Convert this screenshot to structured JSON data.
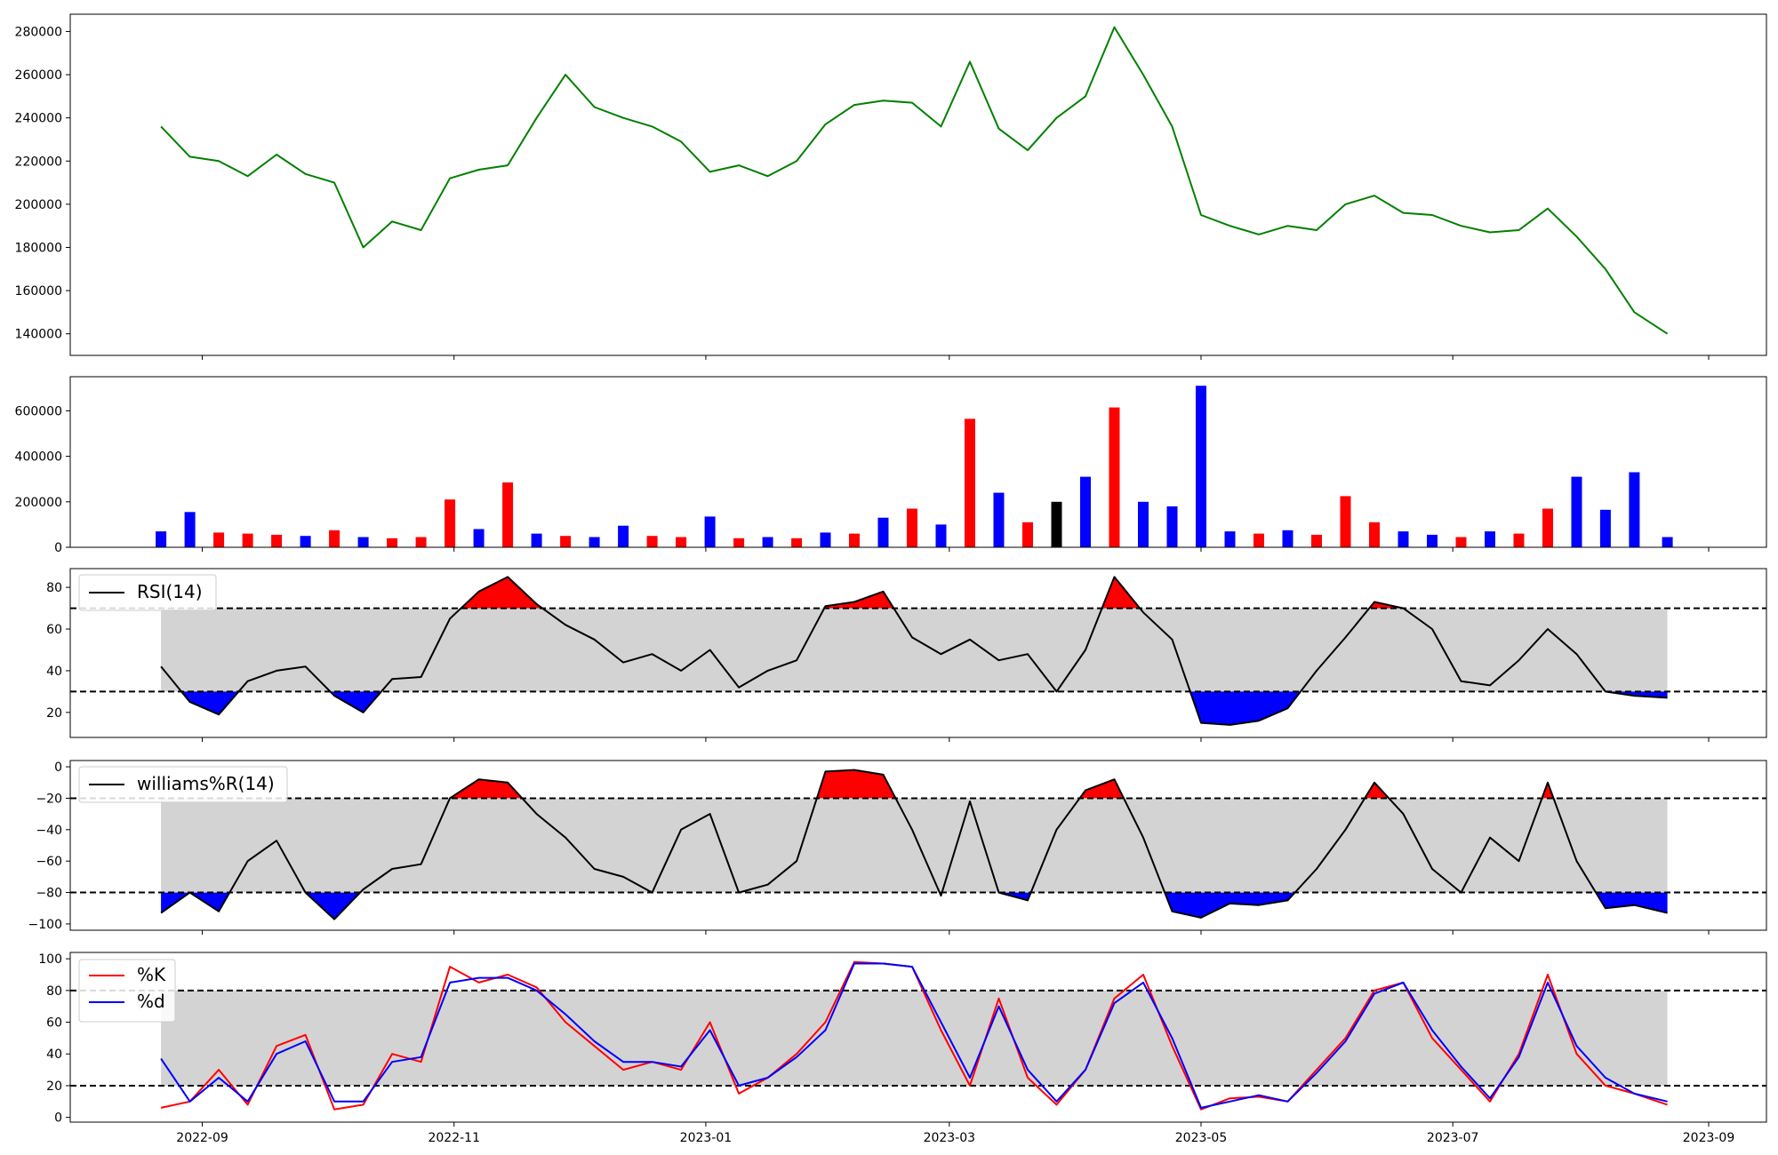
{
  "chart_data": [
    {
      "type": "line",
      "name": "price",
      "ylim": [
        130000,
        288000
      ],
      "y_ticks": [
        "140000",
        "160000",
        "180000",
        "200000",
        "220000",
        "240000",
        "260000",
        "280000"
      ],
      "line_color": "#008000",
      "x": [
        "2022-08-22",
        "2022-08-29",
        "2022-09-05",
        "2022-09-12",
        "2022-09-19",
        "2022-09-26",
        "2022-10-03",
        "2022-10-10",
        "2022-10-17",
        "2022-10-24",
        "2022-10-31",
        "2022-11-07",
        "2022-11-14",
        "2022-11-21",
        "2022-11-28",
        "2022-12-05",
        "2022-12-12",
        "2022-12-19",
        "2022-12-26",
        "2023-01-02",
        "2023-01-09",
        "2023-01-16",
        "2023-01-23",
        "2023-01-30",
        "2023-02-06",
        "2023-02-13",
        "2023-02-20",
        "2023-02-27",
        "2023-03-06",
        "2023-03-13",
        "2023-03-20",
        "2023-03-27",
        "2023-04-03",
        "2023-04-10",
        "2023-04-17",
        "2023-04-24",
        "2023-05-01",
        "2023-05-08",
        "2023-05-15",
        "2023-05-22",
        "2023-05-29",
        "2023-06-05",
        "2023-06-12",
        "2023-06-19",
        "2023-06-26",
        "2023-07-03",
        "2023-07-10",
        "2023-07-17",
        "2023-07-24",
        "2023-07-31",
        "2023-08-07",
        "2023-08-14",
        "2023-08-22"
      ],
      "values": [
        236000,
        222000,
        220000,
        213000,
        223000,
        214000,
        210000,
        180000,
        192000,
        188000,
        212000,
        216000,
        218000,
        240000,
        260000,
        245000,
        240000,
        236000,
        229000,
        215000,
        218000,
        213000,
        220000,
        237000,
        246000,
        248000,
        247000,
        236000,
        266000,
        235000,
        225000,
        240000,
        250000,
        282000,
        260000,
        236000,
        195000,
        190000,
        186000,
        190000,
        188000,
        200000,
        204000,
        196000,
        195000,
        190000,
        187000,
        188000,
        198000,
        185000,
        170000,
        150000,
        140000
      ]
    },
    {
      "type": "bar",
      "name": "volume",
      "ylim": [
        0,
        750000
      ],
      "y_ticks": [
        "0",
        "200000",
        "400000",
        "600000"
      ],
      "up_color": "#ff0000",
      "down_color": "#0000ff",
      "flat_color": "#000000",
      "x": [
        "2022-08-22",
        "2022-08-29",
        "2022-09-05",
        "2022-09-12",
        "2022-09-19",
        "2022-09-26",
        "2022-10-03",
        "2022-10-10",
        "2022-10-17",
        "2022-10-24",
        "2022-10-31",
        "2022-11-07",
        "2022-11-14",
        "2022-11-21",
        "2022-11-28",
        "2022-12-05",
        "2022-12-12",
        "2022-12-19",
        "2022-12-26",
        "2023-01-02",
        "2023-01-09",
        "2023-01-16",
        "2023-01-23",
        "2023-01-30",
        "2023-02-06",
        "2023-02-13",
        "2023-02-20",
        "2023-02-27",
        "2023-03-06",
        "2023-03-13",
        "2023-03-20",
        "2023-03-27",
        "2023-04-03",
        "2023-04-10",
        "2023-04-17",
        "2023-04-24",
        "2023-05-01",
        "2023-05-08",
        "2023-05-15",
        "2023-05-22",
        "2023-05-29",
        "2023-06-05",
        "2023-06-12",
        "2023-06-19",
        "2023-06-26",
        "2023-07-03",
        "2023-07-10",
        "2023-07-17",
        "2023-07-24",
        "2023-07-31",
        "2023-08-07",
        "2023-08-14",
        "2023-08-22"
      ],
      "values": [
        70000,
        155000,
        65000,
        60000,
        55000,
        50000,
        75000,
        45000,
        40000,
        45000,
        210000,
        80000,
        285000,
        60000,
        50000,
        45000,
        95000,
        50000,
        45000,
        135000,
        40000,
        45000,
        40000,
        65000,
        60000,
        130000,
        170000,
        100000,
        565000,
        240000,
        110000,
        200000,
        310000,
        615000,
        200000,
        180000,
        710000,
        70000,
        60000,
        75000,
        55000,
        225000,
        110000,
        70000,
        55000,
        45000,
        70000,
        60000,
        170000,
        310000,
        165000,
        330000,
        45000
      ],
      "colors": [
        "down",
        "down",
        "up",
        "up",
        "up",
        "down",
        "up",
        "down",
        "up",
        "up",
        "up",
        "down",
        "up",
        "down",
        "up",
        "down",
        "down",
        "up",
        "up",
        "down",
        "up",
        "down",
        "up",
        "down",
        "up",
        "down",
        "up",
        "down",
        "up",
        "down",
        "up",
        "flat",
        "down",
        "up",
        "down",
        "down",
        "down",
        "down",
        "up",
        "down",
        "up",
        "up",
        "up",
        "down",
        "down",
        "up",
        "down",
        "up",
        "up",
        "down",
        "down",
        "down",
        "down"
      ]
    },
    {
      "type": "line",
      "name": "rsi",
      "legend": "RSI(14)",
      "ylim": [
        8,
        89
      ],
      "y_ticks": [
        "20",
        "40",
        "60",
        "80"
      ],
      "band": [
        30,
        70
      ],
      "line_color": "#000000",
      "over_color": "#ff0000",
      "under_color": "#0000ff",
      "band_color": "#d3d3d3",
      "x": [
        "2022-08-22",
        "2022-08-29",
        "2022-09-05",
        "2022-09-12",
        "2022-09-19",
        "2022-09-26",
        "2022-10-03",
        "2022-10-10",
        "2022-10-17",
        "2022-10-24",
        "2022-10-31",
        "2022-11-07",
        "2022-11-14",
        "2022-11-21",
        "2022-11-28",
        "2022-12-05",
        "2022-12-12",
        "2022-12-19",
        "2022-12-26",
        "2023-01-02",
        "2023-01-09",
        "2023-01-16",
        "2023-01-23",
        "2023-01-30",
        "2023-02-06",
        "2023-02-13",
        "2023-02-20",
        "2023-02-27",
        "2023-03-06",
        "2023-03-13",
        "2023-03-20",
        "2023-03-27",
        "2023-04-03",
        "2023-04-10",
        "2023-04-17",
        "2023-04-24",
        "2023-05-01",
        "2023-05-08",
        "2023-05-15",
        "2023-05-22",
        "2023-05-29",
        "2023-06-05",
        "2023-06-12",
        "2023-06-19",
        "2023-06-26",
        "2023-07-03",
        "2023-07-10",
        "2023-07-17",
        "2023-07-24",
        "2023-07-31",
        "2023-08-07",
        "2023-08-14",
        "2023-08-22"
      ],
      "values": [
        42,
        25,
        19,
        35,
        40,
        42,
        28,
        20,
        36,
        37,
        65,
        78,
        85,
        72,
        62,
        55,
        44,
        48,
        40,
        50,
        32,
        40,
        45,
        71,
        73,
        78,
        56,
        48,
        55,
        45,
        48,
        30,
        50,
        85,
        68,
        55,
        15,
        14,
        16,
        22,
        40,
        56,
        73,
        70,
        60,
        35,
        33,
        45,
        60,
        48,
        30,
        28,
        27
      ]
    },
    {
      "type": "line",
      "name": "williams",
      "legend": "williams%R(14)",
      "ylim": [
        -104,
        4
      ],
      "y_ticks": [
        "−100",
        "−80",
        "−60",
        "−40",
        "−20",
        "0"
      ],
      "band": [
        -80,
        -20
      ],
      "line_color": "#000000",
      "over_color": "#ff0000",
      "under_color": "#0000ff",
      "band_color": "#d3d3d3",
      "x": [
        "2022-08-22",
        "2022-08-29",
        "2022-09-05",
        "2022-09-12",
        "2022-09-19",
        "2022-09-26",
        "2022-10-03",
        "2022-10-10",
        "2022-10-17",
        "2022-10-24",
        "2022-10-31",
        "2022-11-07",
        "2022-11-14",
        "2022-11-21",
        "2022-11-28",
        "2022-12-05",
        "2022-12-12",
        "2022-12-19",
        "2022-12-26",
        "2023-01-02",
        "2023-01-09",
        "2023-01-16",
        "2023-01-23",
        "2023-01-30",
        "2023-02-06",
        "2023-02-13",
        "2023-02-20",
        "2023-02-27",
        "2023-03-06",
        "2023-03-13",
        "2023-03-20",
        "2023-03-27",
        "2023-04-03",
        "2023-04-10",
        "2023-04-17",
        "2023-04-24",
        "2023-05-01",
        "2023-05-08",
        "2023-05-15",
        "2023-05-22",
        "2023-05-29",
        "2023-06-05",
        "2023-06-12",
        "2023-06-19",
        "2023-06-26",
        "2023-07-03",
        "2023-07-10",
        "2023-07-17",
        "2023-07-24",
        "2023-07-31",
        "2023-08-07",
        "2023-08-14",
        "2023-08-22"
      ],
      "values": [
        -93,
        -80,
        -92,
        -60,
        -47,
        -80,
        -97,
        -78,
        -65,
        -62,
        -20,
        -8,
        -10,
        -30,
        -45,
        -65,
        -70,
        -80,
        -40,
        -30,
        -80,
        -75,
        -60,
        -3,
        -2,
        -5,
        -40,
        -82,
        -22,
        -80,
        -85,
        -40,
        -15,
        -8,
        -45,
        -92,
        -96,
        -87,
        -88,
        -85,
        -65,
        -40,
        -10,
        -30,
        -65,
        -80,
        -45,
        -60,
        -10,
        -60,
        -90,
        -88,
        -93
      ]
    },
    {
      "type": "line",
      "name": "stochastic",
      "legend": [
        "%K",
        "%d"
      ],
      "ylim": [
        -3,
        104
      ],
      "y_ticks": [
        "0",
        "20",
        "40",
        "60",
        "80",
        "100"
      ],
      "band": [
        20,
        80
      ],
      "band_color": "#d3d3d3",
      "x": [
        "2022-08-22",
        "2022-08-29",
        "2022-09-05",
        "2022-09-12",
        "2022-09-19",
        "2022-09-26",
        "2022-10-03",
        "2022-10-10",
        "2022-10-17",
        "2022-10-24",
        "2022-10-31",
        "2022-11-07",
        "2022-11-14",
        "2022-11-21",
        "2022-11-28",
        "2022-12-05",
        "2022-12-12",
        "2022-12-19",
        "2022-12-26",
        "2023-01-02",
        "2023-01-09",
        "2023-01-16",
        "2023-01-23",
        "2023-01-30",
        "2023-02-06",
        "2023-02-13",
        "2023-02-20",
        "2023-02-27",
        "2023-03-06",
        "2023-03-13",
        "2023-03-20",
        "2023-03-27",
        "2023-04-03",
        "2023-04-10",
        "2023-04-17",
        "2023-04-24",
        "2023-05-01",
        "2023-05-08",
        "2023-05-15",
        "2023-05-22",
        "2023-05-29",
        "2023-06-05",
        "2023-06-12",
        "2023-06-19",
        "2023-06-26",
        "2023-07-03",
        "2023-07-10",
        "2023-07-17",
        "2023-07-24",
        "2023-07-31",
        "2023-08-07",
        "2023-08-14",
        "2023-08-22"
      ],
      "series": [
        {
          "name": "%K",
          "color": "#ff0000",
          "values": [
            6,
            10,
            30,
            8,
            45,
            52,
            5,
            8,
            40,
            35,
            95,
            85,
            90,
            82,
            60,
            45,
            30,
            35,
            30,
            60,
            15,
            25,
            40,
            60,
            98,
            97,
            95,
            55,
            20,
            75,
            25,
            8,
            30,
            75,
            90,
            45,
            5,
            12,
            13,
            10,
            30,
            50,
            80,
            85,
            50,
            30,
            10,
            40,
            90,
            40,
            20,
            15,
            8
          ]
        },
        {
          "name": "%d",
          "color": "#0000ff",
          "values": [
            37,
            10,
            25,
            10,
            40,
            48,
            10,
            10,
            35,
            38,
            85,
            88,
            88,
            80,
            65,
            48,
            35,
            35,
            32,
            55,
            20,
            25,
            38,
            55,
            97,
            97,
            95,
            60,
            25,
            70,
            30,
            10,
            30,
            72,
            85,
            50,
            6,
            10,
            14,
            10,
            28,
            48,
            78,
            85,
            55,
            32,
            12,
            38,
            85,
            45,
            25,
            15,
            10
          ]
        }
      ]
    }
  ],
  "x_axis": {
    "tick_dates": [
      "2022-09-01",
      "2022-11-01",
      "2023-01-01",
      "2023-03-01",
      "2023-05-01",
      "2023-07-01",
      "2023-09-01"
    ],
    "tick_labels": [
      "2022-09",
      "2022-11",
      "2023-01",
      "2023-03",
      "2023-05",
      "2023-07",
      "2023-09"
    ],
    "range": [
      "2022-07-31",
      "2023-09-15"
    ]
  }
}
